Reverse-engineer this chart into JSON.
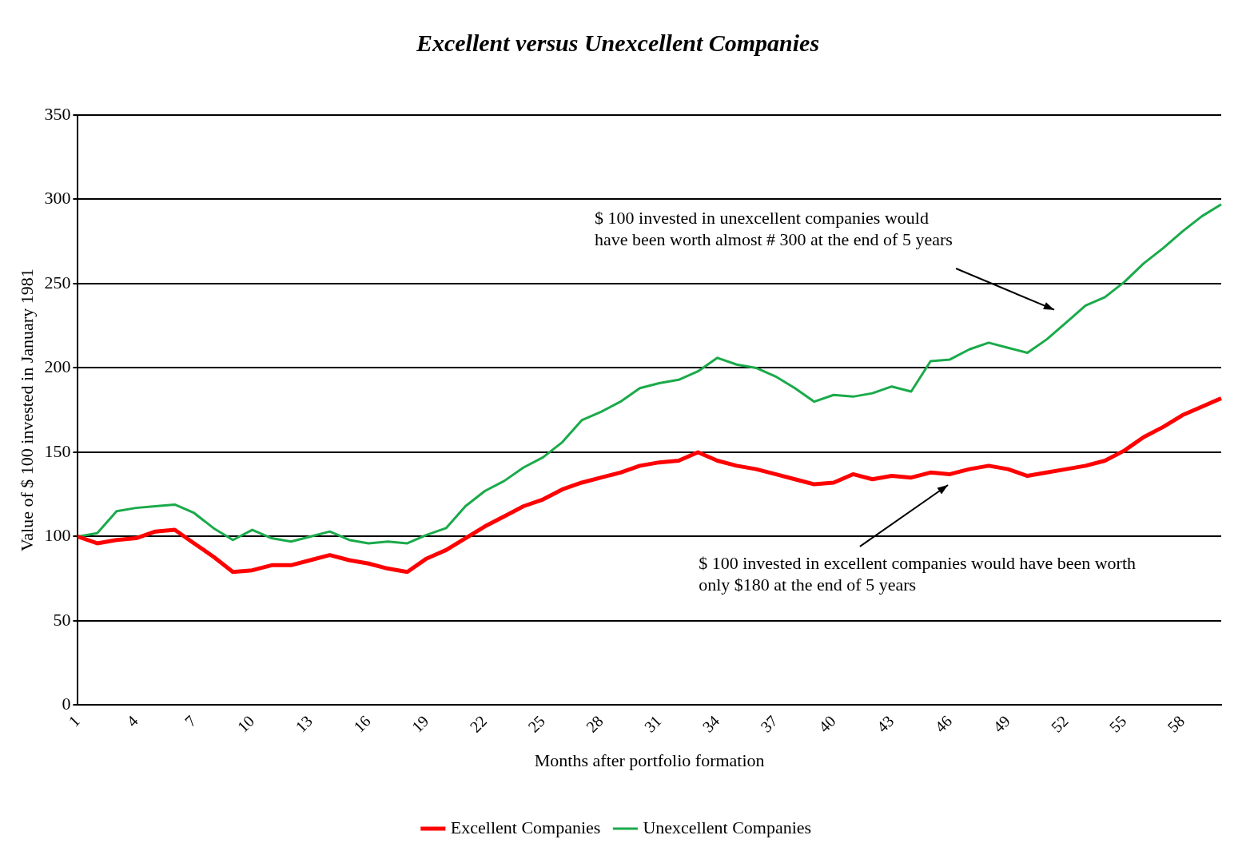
{
  "chart_data": {
    "type": "line",
    "title": "Excellent versus Unexcellent Companies",
    "xlabel": "Months after portfolio formation",
    "ylabel": "Value of $ 100 invested in January 1981",
    "categories": [
      "1",
      null,
      null,
      "4",
      null,
      null,
      "7",
      null,
      null,
      "10",
      null,
      null,
      "13",
      null,
      null,
      "16",
      null,
      null,
      "19",
      null,
      null,
      "22",
      null,
      null,
      "25",
      null,
      null,
      "28",
      null,
      null,
      "31",
      null,
      null,
      "34",
      null,
      null,
      "37",
      null,
      null,
      "40",
      null,
      null,
      "43",
      null,
      null,
      "46",
      null,
      null,
      "49",
      null,
      null,
      "52",
      null,
      null,
      "55",
      null,
      null,
      "58",
      null,
      null
    ],
    "series": [
      {
        "name": "Excellent Companies",
        "color": "#ff0000",
        "values": [
          100,
          96,
          98,
          99,
          103,
          104,
          96,
          88,
          79,
          80,
          83,
          83,
          86,
          89,
          86,
          84,
          81,
          79,
          87,
          92,
          99,
          106,
          112,
          118,
          122,
          128,
          132,
          135,
          138,
          142,
          144,
          145,
          150,
          145,
          142,
          140,
          137,
          134,
          131,
          132,
          137,
          134,
          136,
          135,
          138,
          137,
          140,
          142,
          140,
          136,
          138,
          140,
          142,
          145,
          151,
          159,
          165,
          172,
          177,
          182
        ]
      },
      {
        "name": "Unexcellent Companies",
        "color": "#1aaa4a",
        "values": [
          100,
          102,
          115,
          117,
          118,
          119,
          114,
          105,
          98,
          104,
          99,
          97,
          100,
          103,
          98,
          96,
          97,
          96,
          101,
          105,
          118,
          127,
          133,
          141,
          147,
          156,
          169,
          174,
          180,
          188,
          191,
          193,
          198,
          206,
          202,
          200,
          195,
          188,
          180,
          184,
          183,
          185,
          189,
          186,
          204,
          205,
          211,
          215,
          212,
          209,
          217,
          227,
          237,
          242,
          251,
          262,
          271,
          281,
          290,
          297
        ]
      }
    ],
    "ylim": [
      0,
      350
    ],
    "yticks": [
      0,
      50,
      100,
      150,
      200,
      250,
      300,
      350
    ],
    "grid": "y",
    "legend": "bottom",
    "marker": "none",
    "line_style": "solid",
    "annotations": [
      "$ 100 invested in unexcellent companies would have been worth almost # 300 at the end of 5 years",
      "$ 100 invested in excellent companies would have been worth only $180 at the end of 5 years"
    ]
  }
}
